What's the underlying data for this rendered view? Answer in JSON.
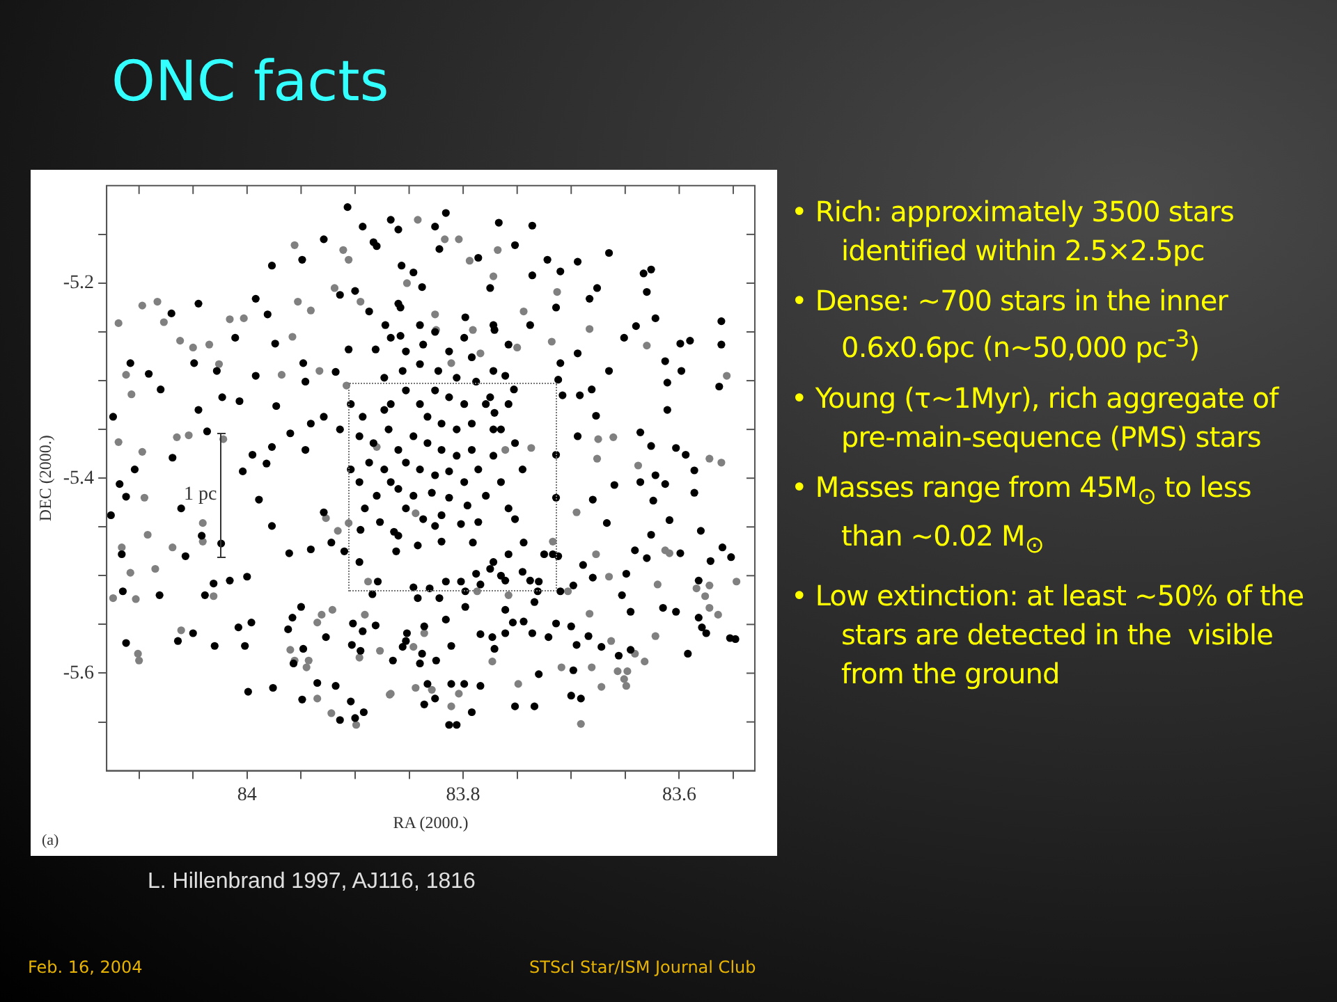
{
  "chart_data": {
    "type": "scatter",
    "title": "ONC facts",
    "xlabel": "RA (2000.)",
    "ylabel": "DEC (2000.)",
    "marker": "circle",
    "xlim": [
      84.13,
      83.53
    ],
    "xticks": [
      {
        "value": 84.1,
        "label": null
      },
      {
        "value": 84.05,
        "label": null
      },
      84,
      {
        "value": 83.95,
        "label": null
      },
      {
        "value": 83.9,
        "label": null
      },
      {
        "value": 83.85,
        "label": null
      },
      83.8,
      {
        "value": 83.75,
        "label": null
      },
      {
        "value": 83.7,
        "label": null
      },
      {
        "value": 83.65,
        "label": null
      },
      83.6,
      {
        "value": 83.55,
        "label": null
      }
    ],
    "ylim": [
      -5.7,
      -5.1
    ],
    "yticks": [
      {
        "value": -5.15,
        "label": null
      },
      -5.2,
      {
        "value": -5.25,
        "label": null
      },
      {
        "value": -5.3,
        "label": null
      },
      {
        "value": -5.35,
        "label": null
      },
      -5.4,
      {
        "value": -5.45,
        "label": null
      },
      {
        "value": -5.5,
        "label": null
      },
      {
        "value": -5.55,
        "label": null
      },
      -5.6,
      {
        "value": -5.65,
        "label": null
      }
    ],
    "series": [
      {
        "color": "#000000",
        "x": [
          83.977,
          83.992,
          83.981,
          83.949,
          83.929,
          83.9,
          83.914,
          83.948,
          83.946,
          83.918,
          83.974,
          84.045,
          84.07,
          84.108,
          84.124,
          84.091,
          84.08,
          84.069,
          84.104,
          84.118,
          83.995,
          83.977,
          84.023,
          84.007,
          84.011,
          83.96,
          83.941,
          83.929,
          83.881,
          83.906,
          83.883,
          84.045,
          84.049,
          84.028,
          83.992,
          83.973,
          84.037,
          84.004,
          83.982,
          83.946,
          83.767,
          83.736,
          83.665,
          83.694,
          83.676,
          83.683,
          83.63,
          83.633,
          83.626,
          83.775,
          83.736,
          83.722,
          83.71,
          83.752,
          83.786,
          83.714,
          83.738,
          83.758,
          83.771,
          83.71,
          83.694,
          83.651,
          83.64,
          83.622,
          83.599,
          83.59,
          83.561,
          83.561,
          83.613,
          83.598,
          83.611,
          83.563,
          83.665,
          83.681,
          83.708,
          83.692,
          83.712,
          83.611,
          83.677,
          83.636,
          83.626,
          83.603,
          83.594,
          83.586,
          83.622,
          83.613,
          83.66,
          83.636,
          83.694,
          83.714,
          83.761,
          83.753,
          83.775,
          83.816,
          83.826,
          83.86,
          83.838,
          83.857,
          83.822,
          83.771,
          83.765,
          83.86,
          83.858,
          83.798,
          83.772,
          84.126,
          84.112,
          84.061,
          84.042,
          84.024,
          84.057,
          84.116,
          84.115,
          84.081,
          84.039,
          84.031,
          84.016,
          84.0,
          84.008,
          83.996,
          84.05,
          84.064,
          84.112,
          84.03,
          84.002,
          83.999,
          83.976,
          83.989,
          83.977,
          83.961,
          83.941,
          83.922,
          83.91,
          83.929,
          83.895,
          83.896,
          83.884,
          83.879,
          83.881,
          83.902,
          83.893,
          83.927,
          83.95,
          83.958,
          83.962,
          83.948,
          83.957,
          83.903,
          83.895,
          83.935,
          83.918,
          83.949,
          83.904,
          83.892,
          83.9,
          83.914,
          83.714,
          83.68,
          83.624,
          83.586,
          83.667,
          83.626,
          83.609,
          83.58,
          83.56,
          83.599,
          83.641,
          83.63,
          83.571,
          83.552,
          83.689,
          83.649,
          83.68,
          83.698,
          83.653,
          83.645,
          83.615,
          83.603,
          83.582,
          83.582,
          83.579,
          83.575,
          83.553,
          83.548,
          83.592,
          83.656,
          83.645,
          83.672,
          83.695,
          83.7,
          83.684,
          83.698,
          83.714,
          83.721,
          83.73,
          83.736,
          83.734,
          83.73,
          83.717,
          83.752,
          83.734,
          83.7,
          83.691,
          83.792,
          83.813,
          83.806,
          83.784,
          83.799,
          83.811,
          83.836,
          83.826,
          83.833,
          83.798,
          83.761,
          83.773,
          83.771,
          83.784,
          83.811,
          83.838,
          83.84,
          83.825,
          83.856,
          83.865,
          83.744,
          83.754,
          83.761,
          83.731,
          83.71,
          83.738,
          83.761,
          83.775,
          83.788,
          83.802,
          83.816,
          83.831,
          83.846,
          83.842,
          83.822,
          83.816,
          83.836,
          83.852,
          83.853,
          83.752,
          83.744,
          83.758,
          83.772,
          83.791,
          83.82,
          83.842,
          83.86,
          83.826,
          83.862,
          83.745,
          83.725,
          83.712,
          83.765,
          83.784,
          83.798,
          83.853,
          83.84,
          83.826,
          83.813,
          83.799,
          83.833,
          83.82,
          83.806,
          83.792,
          83.846,
          83.833,
          83.82,
          83.806,
          83.792,
          83.853,
          83.84,
          83.826,
          83.813,
          83.799,
          83.786,
          83.86,
          83.846,
          83.829,
          83.813,
          83.796,
          83.779,
          83.853,
          83.837,
          83.82,
          83.802,
          83.786,
          83.867,
          83.86,
          83.873,
          83.88,
          83.779,
          83.772,
          83.772,
          83.788,
          83.806,
          83.823,
          83.84,
          83.856,
          83.869,
          83.765,
          83.758,
          83.877,
          83.864,
          83.891,
          83.896,
          83.883,
          83.873,
          83.853,
          83.837,
          83.813,
          83.792,
          83.772,
          83.758,
          83.752,
          83.745,
          83.867,
          83.826,
          83.799,
          83.858,
          83.84,
          83.872,
          83.887,
          83.846,
          83.88,
          83.867,
          83.893,
          83.907,
          83.904,
          83.893,
          83.873,
          83.887,
          83.904,
          83.867,
          83.914,
          83.896
        ],
        "values": [
          -5.182,
          -5.216,
          -5.232,
          -5.176,
          -5.155,
          -5.208,
          -5.212,
          -5.282,
          -5.301,
          -5.291,
          -5.262,
          -5.33,
          -5.231,
          -5.282,
          -5.337,
          -5.293,
          -5.309,
          -5.379,
          -5.391,
          -5.406,
          -5.376,
          -5.368,
          -5.317,
          -5.321,
          -5.256,
          -5.354,
          -5.344,
          -5.337,
          -5.268,
          -5.268,
          -5.158,
          -5.221,
          -5.282,
          -5.29,
          -5.295,
          -5.326,
          -5.352,
          -5.393,
          -5.385,
          -5.371,
          -5.138,
          -5.141,
          -5.169,
          -5.178,
          -5.205,
          -5.216,
          -5.209,
          -5.19,
          -5.186,
          -5.205,
          -5.192,
          -5.176,
          -5.188,
          -5.161,
          -5.174,
          -5.225,
          -5.243,
          -5.263,
          -5.248,
          -5.282,
          -5.272,
          -5.256,
          -5.244,
          -5.236,
          -5.262,
          -5.259,
          -5.239,
          -5.263,
          -5.28,
          -5.29,
          -5.302,
          -5.306,
          -5.29,
          -5.309,
          -5.315,
          -5.315,
          -5.299,
          -5.33,
          -5.336,
          -5.353,
          -5.367,
          -5.369,
          -5.376,
          -5.392,
          -5.397,
          -5.406,
          -5.407,
          -5.404,
          -5.357,
          -5.376,
          -5.295,
          -5.309,
          -5.317,
          -5.128,
          -5.142,
          -5.145,
          -5.204,
          -5.182,
          -5.165,
          -5.333,
          -5.35,
          -5.221,
          -5.254,
          -5.235,
          -5.243,
          -5.438,
          -5.419,
          -5.431,
          -5.459,
          -5.467,
          -5.48,
          -5.478,
          -5.516,
          -5.52,
          -5.52,
          -5.508,
          -5.505,
          -5.501,
          -5.553,
          -5.548,
          -5.559,
          -5.567,
          -5.569,
          -5.572,
          -5.572,
          -5.619,
          -5.615,
          -5.422,
          -5.449,
          -5.477,
          -5.473,
          -5.466,
          -5.475,
          -5.435,
          -5.453,
          -5.486,
          -5.519,
          -5.506,
          -5.551,
          -5.549,
          -5.557,
          -5.563,
          -5.532,
          -5.543,
          -5.555,
          -5.575,
          -5.59,
          -5.571,
          -5.577,
          -5.61,
          -5.613,
          -5.627,
          -5.629,
          -5.64,
          -5.646,
          -5.648,
          -5.42,
          -5.422,
          -5.423,
          -5.415,
          -5.446,
          -5.458,
          -5.443,
          -5.454,
          -5.471,
          -5.477,
          -5.474,
          -5.482,
          -5.485,
          -5.481,
          -5.489,
          -5.498,
          -5.502,
          -5.51,
          -5.52,
          -5.537,
          -5.533,
          -5.537,
          -5.505,
          -5.543,
          -5.553,
          -5.559,
          -5.564,
          -5.565,
          -5.58,
          -5.582,
          -5.576,
          -5.573,
          -5.571,
          -5.552,
          -5.562,
          -5.597,
          -5.549,
          -5.563,
          -5.601,
          -5.559,
          -5.527,
          -5.506,
          -5.478,
          -5.634,
          -5.634,
          -5.623,
          -5.626,
          -5.64,
          -5.653,
          -5.653,
          -5.613,
          -5.611,
          -5.611,
          -5.632,
          -5.626,
          -5.611,
          -5.532,
          -5.535,
          -5.563,
          -5.575,
          -5.56,
          -5.572,
          -5.58,
          -5.59,
          -5.587,
          -5.573,
          -5.587,
          -5.547,
          -5.548,
          -5.559,
          -5.516,
          -5.516,
          -5.505,
          -5.505,
          -5.493,
          -5.498,
          -5.506,
          -5.506,
          -5.513,
          -5.512,
          -5.523,
          -5.523,
          -5.545,
          -5.552,
          -5.559,
          -5.567,
          -5.442,
          -5.466,
          -5.478,
          -5.486,
          -5.466,
          -5.465,
          -5.469,
          -5.459,
          -5.449,
          -5.475,
          -5.496,
          -5.478,
          -5.48,
          -5.5,
          -5.509,
          -5.516,
          -5.31,
          -5.324,
          -5.31,
          -5.317,
          -5.324,
          -5.337,
          -5.344,
          -5.35,
          -5.344,
          -5.357,
          -5.364,
          -5.371,
          -5.377,
          -5.371,
          -5.384,
          -5.391,
          -5.397,
          -5.393,
          -5.404,
          -5.391,
          -5.411,
          -5.418,
          -5.415,
          -5.42,
          -5.428,
          -5.418,
          -5.431,
          -5.442,
          -5.438,
          -5.447,
          -5.445,
          -5.324,
          -5.371,
          -5.391,
          -5.418,
          -5.324,
          -5.35,
          -5.377,
          -5.301,
          -5.297,
          -5.29,
          -5.283,
          -5.29,
          -5.35,
          -5.404,
          -5.431,
          -5.445,
          -5.455,
          -5.431,
          -5.404,
          -5.364,
          -5.297,
          -5.27,
          -5.263,
          -5.27,
          -5.276,
          -5.29,
          -5.324,
          -5.364,
          -5.391,
          -5.256,
          -5.25,
          -5.256,
          -5.225,
          -5.243,
          -5.243,
          -5.229,
          -5.189,
          -5.162,
          -5.135,
          -5.142,
          -5.122,
          -5.324,
          -5.337,
          -5.33,
          -5.384,
          -5.391,
          -5.404,
          -5.35,
          -5.357
        ]
      },
      {
        "color": "#808080",
        "x": [
          84.097,
          84.083,
          84.119,
          84.077,
          84.062,
          84.05,
          84.035,
          84.016,
          84.003,
          84.026,
          84.112,
          84.107,
          84.119,
          84.097,
          84.065,
          84.054,
          84.022,
          83.968,
          83.953,
          83.941,
          83.958,
          83.956,
          83.911,
          83.906,
          83.919,
          83.895,
          83.933,
          83.908,
          83.88,
          83.842,
          83.804,
          83.817,
          83.794,
          83.772,
          83.768,
          83.713,
          83.744,
          83.683,
          83.718,
          83.75,
          83.63,
          83.556,
          83.675,
          83.661,
          83.638,
          83.676,
          83.572,
          83.561,
          83.737,
          83.761,
          83.784,
          83.811,
          83.825,
          83.826,
          83.852,
          83.791,
          84.095,
          84.041,
          84.041,
          84.092,
          84.069,
          84.116,
          84.108,
          84.085,
          84.124,
          84.103,
          84.031,
          84.061,
          84.101,
          84.1,
          83.96,
          83.956,
          83.943,
          83.945,
          83.935,
          83.931,
          83.921,
          83.896,
          83.935,
          83.922,
          83.899,
          83.906,
          83.888,
          83.891,
          83.868,
          83.877,
          83.927,
          83.916,
          83.62,
          83.584,
          83.572,
          83.576,
          83.572,
          83.564,
          83.547,
          83.683,
          83.622,
          83.663,
          83.709,
          83.681,
          83.657,
          83.648,
          83.649,
          83.651,
          83.672,
          83.632,
          83.641,
          83.691,
          83.749,
          83.773,
          83.804,
          83.811,
          83.829,
          83.844,
          83.844,
          83.695,
          83.677,
          83.665,
          83.613,
          83.609,
          83.787,
          83.846,
          83.836,
          83.867,
          83.717,
          83.758,
          83.703
        ],
        "values": [
          -5.223,
          -5.219,
          -5.241,
          -5.24,
          -5.259,
          -5.266,
          -5.263,
          -5.237,
          -5.236,
          -5.283,
          -5.294,
          -5.314,
          -5.363,
          -5.373,
          -5.358,
          -5.356,
          -5.36,
          -5.294,
          -5.219,
          -5.228,
          -5.255,
          -5.161,
          -5.166,
          -5.176,
          -5.205,
          -5.219,
          -5.29,
          -5.305,
          -5.368,
          -5.135,
          -5.155,
          -5.155,
          -5.177,
          -5.193,
          -5.166,
          -5.209,
          -5.229,
          -5.247,
          -5.26,
          -5.266,
          -5.264,
          -5.295,
          -5.36,
          -5.358,
          -5.387,
          -5.38,
          -5.38,
          -5.384,
          -5.369,
          -5.371,
          -5.272,
          -5.282,
          -5.248,
          -5.232,
          -5.2,
          -5.248,
          -5.42,
          -5.446,
          -5.465,
          -5.458,
          -5.471,
          -5.471,
          -5.497,
          -5.493,
          -5.523,
          -5.524,
          -5.521,
          -5.556,
          -5.58,
          -5.587,
          -5.576,
          -5.587,
          -5.587,
          -5.594,
          -5.548,
          -5.54,
          -5.535,
          -5.584,
          -5.626,
          -5.641,
          -5.653,
          -5.446,
          -5.506,
          -5.54,
          -5.622,
          -5.577,
          -5.441,
          -5.454,
          -5.509,
          -5.513,
          -5.51,
          -5.521,
          -5.533,
          -5.54,
          -5.506,
          -5.539,
          -5.562,
          -5.567,
          -5.594,
          -5.594,
          -5.598,
          -5.598,
          -5.613,
          -5.606,
          -5.614,
          -5.588,
          -5.58,
          -5.652,
          -5.611,
          -5.588,
          -5.621,
          -5.634,
          -5.617,
          -5.615,
          -5.436,
          -5.435,
          -5.478,
          -5.501,
          -5.474,
          -5.477,
          -5.516,
          -5.573,
          -5.559,
          -5.621,
          -5.465,
          -5.52,
          -5.516
        ]
      }
    ],
    "annotations": [
      "1 pc",
      "(a)",
      "L. Hillenbrand 1997, AJ116, 1816",
      "Feb. 16, 2004",
      "STScI Star/ISM Journal Club",
      "• Rich: approximately 3500 stars identified within 2.5×2.5pc",
      "• Dense: ~700 stars in the inner 0.6x0.6pc (n~50,000 pc$^{-3}$)",
      "• Young (τ~1Myr), rich aggregate of pre-main-sequence (PMS) stars",
      "• Masses range from 45M$_{⊙}$ to less than ~0.02 M$_{⊙}$",
      "• Low extinction: at least ~50% of the stars are detected in the  visible from the ground"
    ]
  }
}
